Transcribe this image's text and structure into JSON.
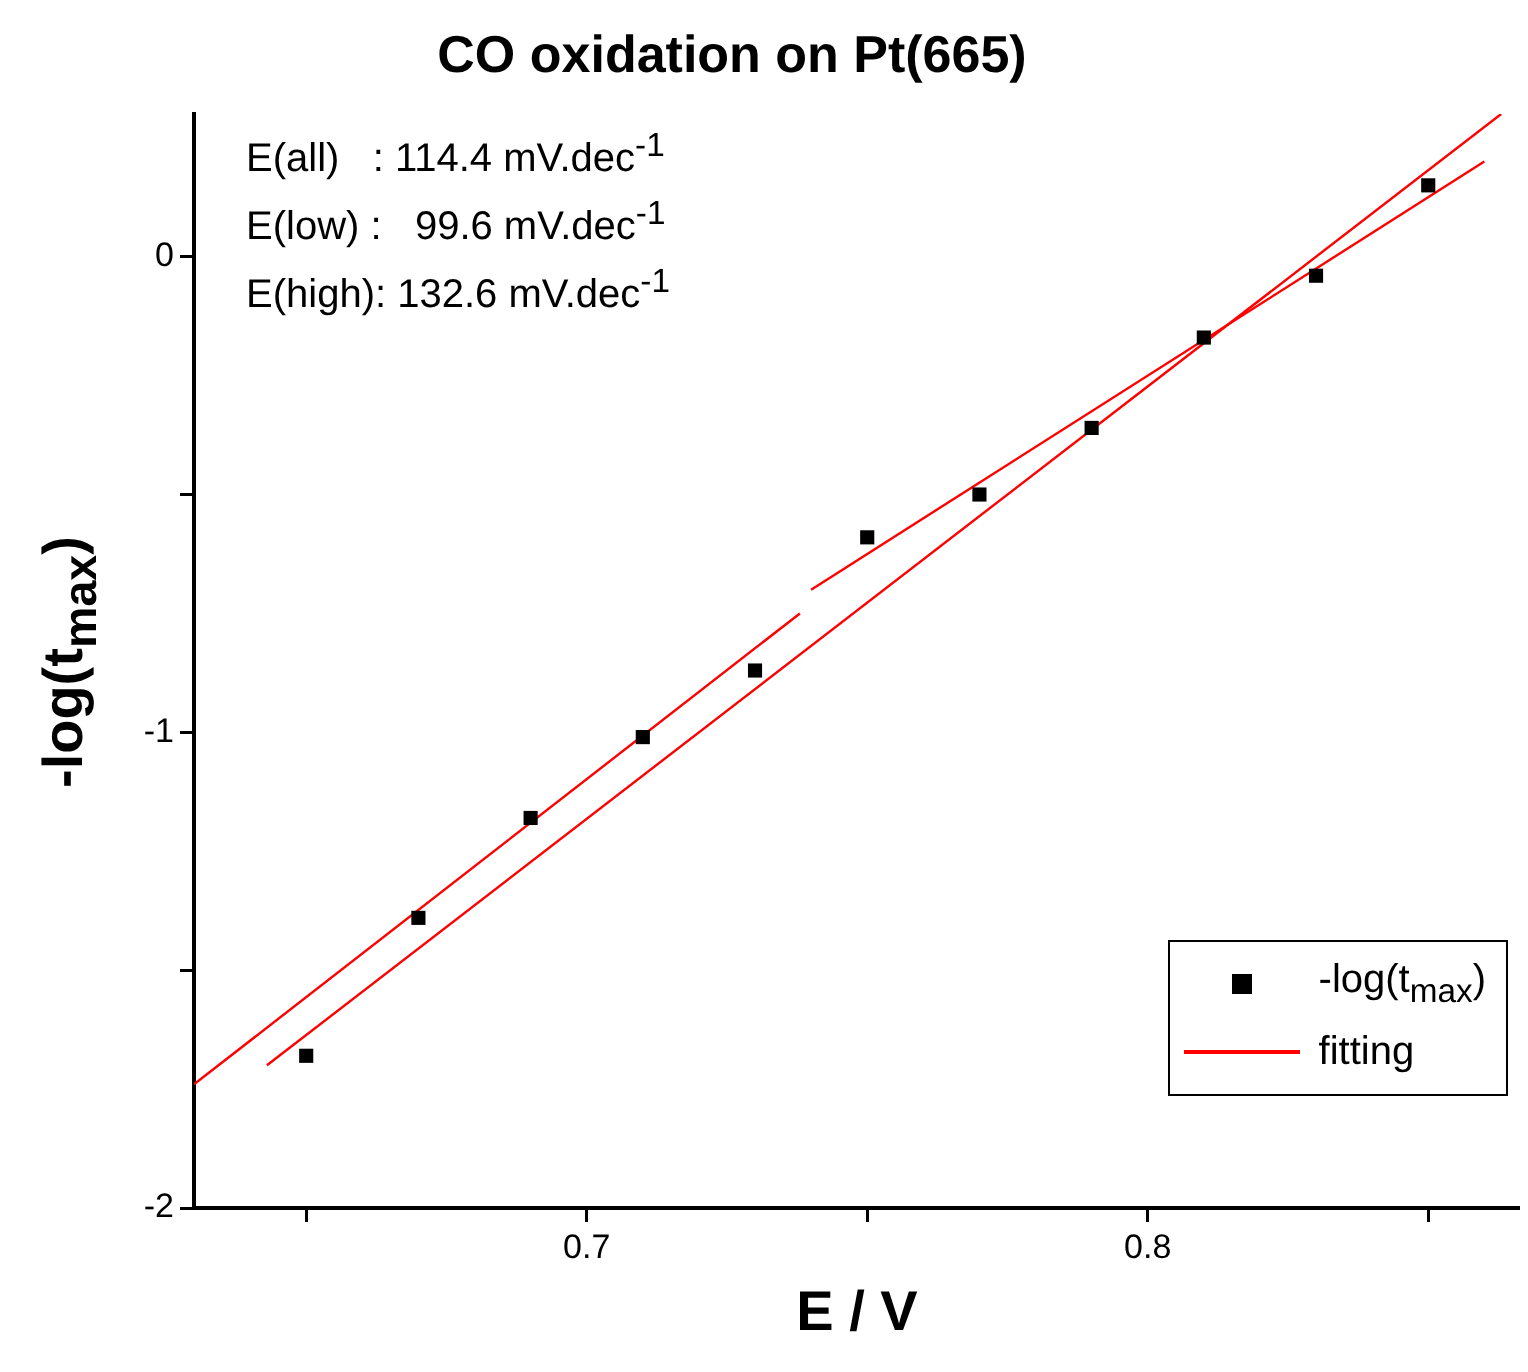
{
  "chart_data": {
    "type": "scatter",
    "title": "CO oxidation on Pt(665)",
    "xlabel": "E / V",
    "ylabel": "-log(t$_{max}$)",
    "annotations": [
      "E(all)   : 114.4 mV.dec$^{-1}$",
      "E(low) :   99.6 mV.dec$^{-1}$",
      "E(high): 132.6 mV.dec$^{-1}$"
    ],
    "xlim": [
      0.63,
      0.866
    ],
    "ylim": [
      -2,
      0.3
    ],
    "xticks": [
      {
        "value": 0.65,
        "label": null
      },
      0.7,
      {
        "value": 0.75,
        "label": null
      },
      0.8,
      {
        "value": 0.85,
        "label": null
      }
    ],
    "yticks": [
      -2,
      {
        "value": -1.5,
        "label": null
      },
      -1,
      {
        "value": -0.5,
        "label": null
      },
      0
    ],
    "grid": false,
    "legend": "bottom right",
    "series": [
      {
        "name": "-log(t$_{max}$)",
        "marker": "square",
        "color": "#000000",
        "x": [
          0.65,
          0.67,
          0.69,
          0.71,
          0.73,
          0.75,
          0.77,
          0.79,
          0.81,
          0.83,
          0.85
        ],
        "values": [
          -1.68,
          -1.39,
          -1.18,
          -1.01,
          -0.87,
          -0.59,
          -0.5,
          -0.36,
          -0.17,
          -0.04,
          0.15
        ]
      },
      {
        "name": "fitting",
        "type": "line",
        "marker": "none",
        "color": "#ff0000",
        "x": [
          0.643,
          0.863
        ],
        "values": [
          -1.7,
          0.3
        ]
      },
      {
        "type": "line",
        "marker": "none",
        "color": "#ff0000",
        "x": [
          0.63,
          0.738
        ],
        "values": [
          -1.74,
          -0.75
        ]
      },
      {
        "type": "line",
        "marker": "none",
        "color": "#ff0000",
        "x": [
          0.74,
          0.86
        ],
        "values": [
          -0.7,
          0.2
        ]
      }
    ]
  }
}
